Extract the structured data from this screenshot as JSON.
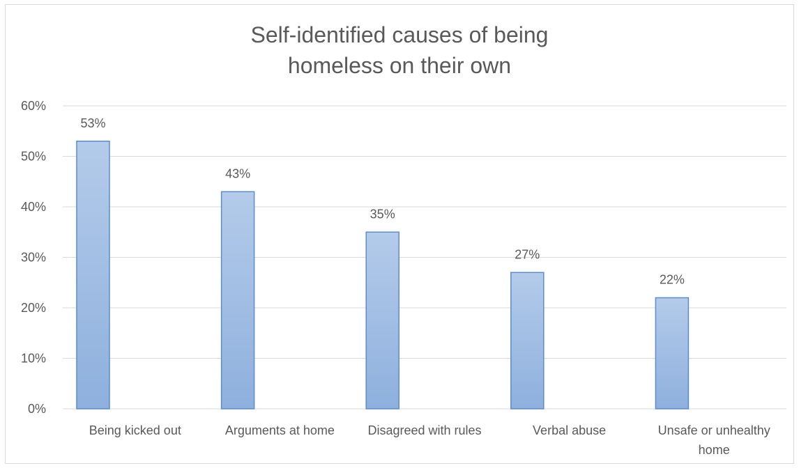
{
  "chart_data": {
    "type": "bar",
    "title_lines": [
      "Self-identified causes of being",
      "homeless on their own"
    ],
    "categories": [
      [
        "Being kicked out"
      ],
      [
        "Arguments at home"
      ],
      [
        "Disagreed with rules"
      ],
      [
        "Verbal abuse"
      ],
      [
        "Unsafe or unhealthy",
        "home"
      ]
    ],
    "values": [
      53,
      43,
      35,
      27,
      22
    ],
    "value_labels": [
      "53%",
      "43%",
      "35%",
      "27%",
      "22%"
    ],
    "yticks": [
      "0%",
      "10%",
      "20%",
      "30%",
      "40%",
      "50%",
      "60%"
    ],
    "ylim": [
      0,
      60
    ],
    "grid": true,
    "legend": "none",
    "colors": {
      "bar_top": "#b4cbea",
      "bar_bottom": "#8eb0dd",
      "bar_border": "#5b8ccb",
      "grid": "#d9d9d9",
      "text": "#595959"
    }
  }
}
